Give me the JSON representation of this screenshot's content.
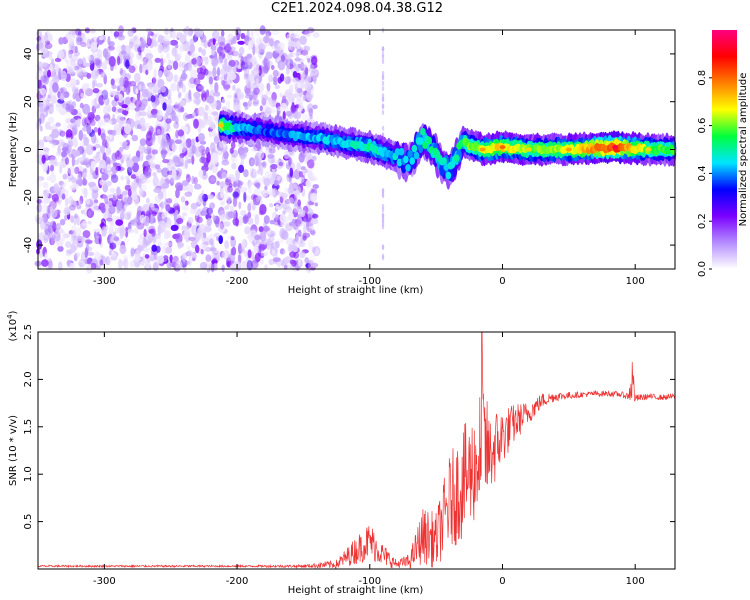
{
  "title": "C2E1.2024.098.04.38.G12",
  "chart_data": [
    {
      "type": "heatmap",
      "xlabel": "Height of straight line (km)",
      "ylabel": "Frequency (Hz)",
      "xlim": [
        -350,
        130
      ],
      "ylim": [
        -50,
        50
      ],
      "xticks": [
        -300,
        -200,
        -100,
        0,
        100
      ],
      "yticks": [
        -40,
        -20,
        0,
        20,
        40
      ],
      "grid": false,
      "colorbar": {
        "label": "Normalized spectral amplitude",
        "range": [
          0.0,
          1.0
        ],
        "ticks": [
          0.0,
          0.2,
          0.4,
          0.6,
          0.8
        ],
        "colormap": [
          "#ffffff",
          "#b48cff",
          "#7a00ff",
          "#0000ff",
          "#00e5ff",
          "#00ff3c",
          "#ffff00",
          "#ff7f00",
          "#ff0000",
          "#ff0080"
        ]
      },
      "features": {
        "noise_region_x": [
          -350,
          -140
        ],
        "noise_band_amplitude": 0.1,
        "signal_ridge": [
          {
            "x": -212,
            "y": 10,
            "amp": 0.62
          },
          {
            "x": -200,
            "y": 9,
            "amp": 0.45
          },
          {
            "x": -180,
            "y": 8,
            "amp": 0.35
          },
          {
            "x": -160,
            "y": 6,
            "amp": 0.4
          },
          {
            "x": -140,
            "y": 5,
            "amp": 0.42
          },
          {
            "x": -120,
            "y": 3,
            "amp": 0.45
          },
          {
            "x": -100,
            "y": 1,
            "amp": 0.5
          },
          {
            "x": -85,
            "y": -2,
            "amp": 0.45
          },
          {
            "x": -70,
            "y": -5,
            "amp": 0.4
          },
          {
            "x": -60,
            "y": 5,
            "amp": 0.5
          },
          {
            "x": -50,
            "y": -2,
            "amp": 0.5
          },
          {
            "x": -40,
            "y": -10,
            "amp": 0.45
          },
          {
            "x": -30,
            "y": 3,
            "amp": 0.55
          },
          {
            "x": -15,
            "y": 0,
            "amp": 0.65
          },
          {
            "x": 0,
            "y": 1,
            "amp": 0.7
          },
          {
            "x": 20,
            "y": 0,
            "amp": 0.6
          },
          {
            "x": 50,
            "y": 0,
            "amp": 0.65
          },
          {
            "x": 85,
            "y": 1,
            "amp": 0.85
          },
          {
            "x": 110,
            "y": 0,
            "amp": 0.6
          },
          {
            "x": 130,
            "y": 0,
            "amp": 0.55
          }
        ]
      }
    },
    {
      "type": "line",
      "xlabel": "Height of straight line (km)",
      "ylabel": "SNR (10 * v/v)",
      "yscale_label": "(x10",
      "yscale_exponent": "4",
      "yscale_suffix": ")",
      "xlim": [
        -350,
        130
      ],
      "ylim": [
        0,
        2.5
      ],
      "xticks": [
        -300,
        -200,
        -100,
        0,
        100
      ],
      "yticks": [
        0.5,
        1.0,
        1.5,
        2.0,
        2.5
      ],
      "grid": false,
      "series": [
        {
          "color": "#ee3333",
          "x": [
            -350,
            -300,
            -250,
            -200,
            -150,
            -125,
            -110,
            -100,
            -90,
            -80,
            -70,
            -60,
            -50,
            -40,
            -30,
            -20,
            -15,
            -10,
            -5,
            0,
            10,
            20,
            30,
            40,
            50,
            60,
            70,
            80,
            90,
            95,
            98,
            100,
            110,
            120,
            130
          ],
          "y": [
            0.03,
            0.03,
            0.03,
            0.03,
            0.03,
            0.05,
            0.2,
            0.3,
            0.15,
            0.05,
            0.08,
            0.35,
            0.3,
            0.7,
            0.9,
            1.1,
            1.3,
            1.2,
            1.3,
            1.4,
            1.55,
            1.65,
            1.78,
            1.82,
            1.83,
            1.84,
            1.85,
            1.85,
            1.84,
            1.82,
            2.0,
            1.8,
            1.82,
            1.81,
            1.82
          ],
          "noise_amplitude": [
            0.01,
            0.01,
            0.01,
            0.01,
            0.015,
            0.05,
            0.15,
            0.2,
            0.12,
            0.05,
            0.08,
            0.3,
            0.3,
            0.5,
            0.6,
            0.6,
            0.8,
            0.45,
            0.4,
            0.3,
            0.2,
            0.12,
            0.08,
            0.05,
            0.04,
            0.03,
            0.03,
            0.03,
            0.03,
            0.04,
            0.3,
            0.04,
            0.03,
            0.03,
            0.03
          ]
        }
      ]
    }
  ]
}
